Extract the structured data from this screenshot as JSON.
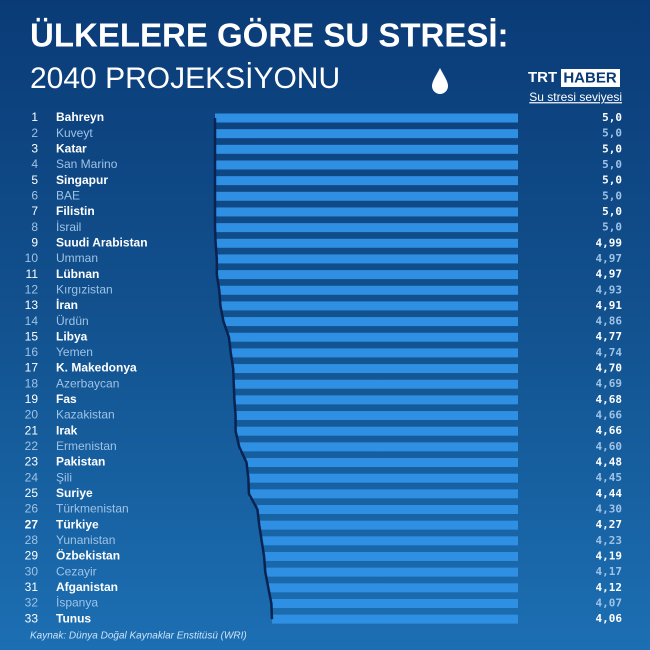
{
  "chart_data": {
    "type": "bar",
    "title": "ÜLKELERE GÖRE SU STRESİ:",
    "subtitle": "2040 PROJEKSİYONU",
    "logo": {
      "left": "TRT",
      "right": "HABER"
    },
    "legend_label": "Su stresi seviyesi",
    "source": "Kaynak: Dünya Doğal Kaynaklar Enstitüsü (WRI)",
    "ranks": [
      1,
      2,
      3,
      4,
      5,
      6,
      7,
      8,
      9,
      10,
      11,
      12,
      13,
      14,
      15,
      16,
      17,
      18,
      19,
      20,
      21,
      22,
      23,
      24,
      25,
      26,
      27,
      28,
      29,
      30,
      31,
      32,
      33
    ],
    "categories": [
      "Bahreyn",
      "Kuveyt",
      "Katar",
      "San Marino",
      "Singapur",
      "BAE",
      "Filistin",
      "İsrail",
      "Suudi Arabistan",
      "Umman",
      "Lübnan",
      "Kırgızistan",
      "İran",
      "Ürdün",
      "Libya",
      "Yemen",
      "K. Makedonya",
      "Azerbaycan",
      "Fas",
      "Kazakistan",
      "Irak",
      "Ermenistan",
      "Pakistan",
      "Şili",
      "Suriye",
      "Türkmenistan",
      "Türkiye",
      "Yunanistan",
      "Özbekistan",
      "Cezayir",
      "Afganistan",
      "İspanya",
      "Tunus"
    ],
    "values": [
      5.0,
      5.0,
      5.0,
      5.0,
      5.0,
      5.0,
      5.0,
      5.0,
      4.99,
      4.97,
      4.97,
      4.93,
      4.91,
      4.86,
      4.77,
      4.74,
      4.7,
      4.69,
      4.68,
      4.66,
      4.66,
      4.6,
      4.48,
      4.45,
      4.44,
      4.3,
      4.27,
      4.23,
      4.19,
      4.17,
      4.12,
      4.07,
      4.06
    ],
    "value_labels": [
      "5,0",
      "5,0",
      "5,0",
      "5,0",
      "5,0",
      "5,0",
      "5,0",
      "5,0",
      "4,99",
      "4,97",
      "4,97",
      "4,93",
      "4,91",
      "4,86",
      "4,77",
      "4,74",
      "4,70",
      "4,69",
      "4,68",
      "4,66",
      "4,66",
      "4,60",
      "4,48",
      "4,45",
      "4,44",
      "4,30",
      "4,27",
      "4,23",
      "4,19",
      "4,17",
      "4,12",
      "4,07",
      "4,06"
    ],
    "color": "#2f8fe2",
    "line_color": "#0b2350",
    "highlight_index": 26
  }
}
